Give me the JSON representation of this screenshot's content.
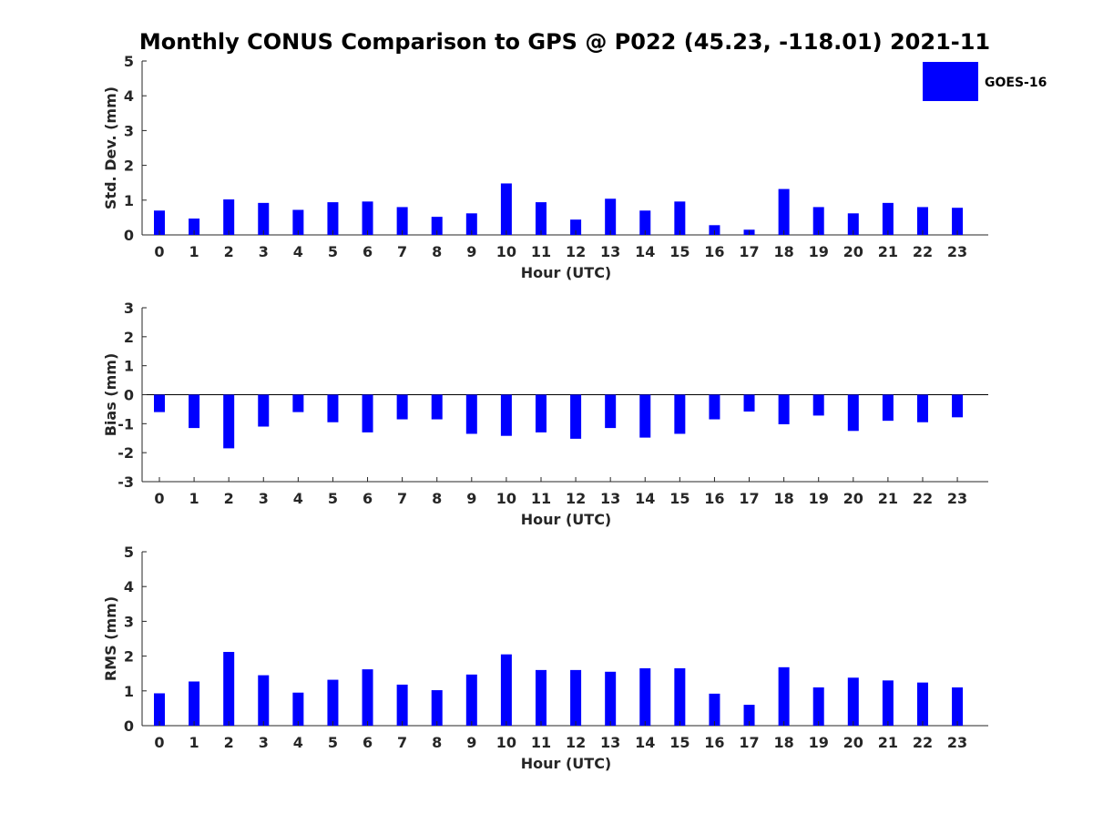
{
  "figure": {
    "title": "Monthly CONUS Comparison to GPS @ P022 (45.23, -118.01) 2021-11"
  },
  "legend": {
    "label": "GOES-16",
    "position": "top-right",
    "color": "#0000ff"
  },
  "colors": {
    "bar": "#0000ff",
    "axis": "#262626"
  },
  "chart_data": [
    {
      "type": "bar",
      "series": [
        {
          "name": "GOES-16",
          "values": [
            0.7,
            0.47,
            1.02,
            0.92,
            0.72,
            0.94,
            0.96,
            0.8,
            0.52,
            0.62,
            1.48,
            0.94,
            0.44,
            1.04,
            0.7,
            0.96,
            0.28,
            0.15,
            1.32,
            0.8,
            0.62,
            0.92,
            0.8,
            0.78
          ]
        }
      ],
      "categories": [
        "0",
        "1",
        "2",
        "3",
        "4",
        "5",
        "6",
        "7",
        "8",
        "9",
        "10",
        "11",
        "12",
        "13",
        "14",
        "15",
        "16",
        "17",
        "18",
        "19",
        "20",
        "21",
        "22",
        "23"
      ],
      "xlabel": "Hour (UTC)",
      "ylabel": "Std. Dev. (mm)",
      "ylim": [
        0,
        5
      ],
      "yticks": [
        "0",
        "1",
        "2",
        "3",
        "4",
        "5"
      ],
      "grid": false
    },
    {
      "type": "bar",
      "series": [
        {
          "name": "GOES-16",
          "values": [
            -0.6,
            -1.15,
            -1.85,
            -1.1,
            -0.6,
            -0.95,
            -1.3,
            -0.85,
            -0.85,
            -1.35,
            -1.42,
            -1.3,
            -1.52,
            -1.15,
            -1.48,
            -1.35,
            -0.85,
            -0.58,
            -1.02,
            -0.72,
            -1.25,
            -0.9,
            -0.95,
            -0.78
          ]
        }
      ],
      "categories": [
        "0",
        "1",
        "2",
        "3",
        "4",
        "5",
        "6",
        "7",
        "8",
        "9",
        "10",
        "11",
        "12",
        "13",
        "14",
        "15",
        "16",
        "17",
        "18",
        "19",
        "20",
        "21",
        "22",
        "23"
      ],
      "xlabel": "Hour (UTC)",
      "ylabel": "Bias (mm)",
      "ylim": [
        -3,
        3
      ],
      "yticks": [
        "-3",
        "-2",
        "-1",
        "0",
        "1",
        "2",
        "3"
      ],
      "zero_line": true,
      "grid": false
    },
    {
      "type": "bar",
      "series": [
        {
          "name": "GOES-16",
          "values": [
            0.93,
            1.27,
            2.12,
            1.45,
            0.95,
            1.32,
            1.62,
            1.18,
            1.02,
            1.47,
            2.05,
            1.6,
            1.6,
            1.55,
            1.65,
            1.65,
            0.92,
            0.6,
            1.68,
            1.1,
            1.38,
            1.3,
            1.24,
            1.1
          ]
        }
      ],
      "categories": [
        "0",
        "1",
        "2",
        "3",
        "4",
        "5",
        "6",
        "7",
        "8",
        "9",
        "10",
        "11",
        "12",
        "13",
        "14",
        "15",
        "16",
        "17",
        "18",
        "19",
        "20",
        "21",
        "22",
        "23"
      ],
      "xlabel": "Hour (UTC)",
      "ylabel": "RMS (mm)",
      "ylim": [
        0,
        5
      ],
      "yticks": [
        "0",
        "1",
        "2",
        "3",
        "4",
        "5"
      ],
      "grid": false
    }
  ]
}
